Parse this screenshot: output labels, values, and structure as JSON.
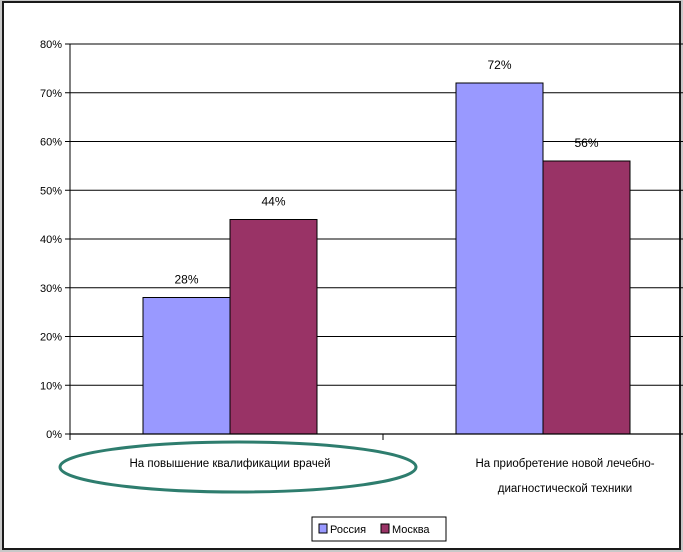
{
  "chart_data": {
    "type": "bar",
    "categories": [
      [
        "На повышение квалификации врачей"
      ],
      [
        "На приобретение новой лечебно-",
        "диагностической техники"
      ]
    ],
    "series": [
      {
        "name": "Россия",
        "values": [
          28,
          72
        ],
        "color": "#9999ff",
        "data_labels": [
          "28%",
          "72%"
        ]
      },
      {
        "name": "Москва",
        "values": [
          44,
          56
        ],
        "color": "#993366",
        "data_labels": [
          "44%",
          "56%"
        ]
      }
    ],
    "ylim": [
      0,
      80
    ],
    "y_ticks": [
      "0%",
      "10%",
      "20%",
      "30%",
      "40%",
      "50%",
      "60%",
      "70%",
      "80%"
    ],
    "grid": true,
    "legend_position": "bottom",
    "annotation": {
      "type": "ellipse",
      "target_category": 0,
      "color": "#2e7d6e"
    }
  }
}
